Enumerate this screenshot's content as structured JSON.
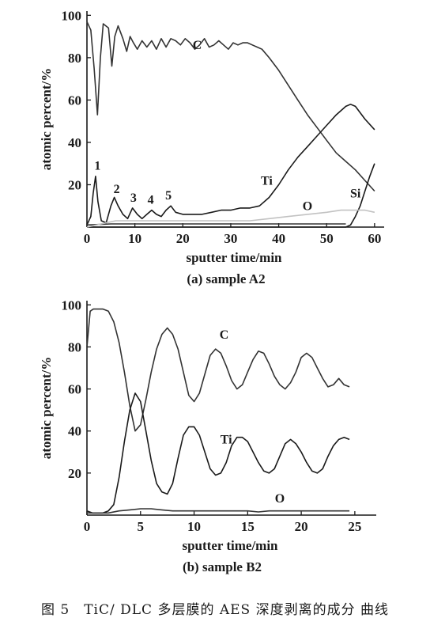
{
  "caption": "图 5　TiC/ DLC 多层膜的 AES 深度剥离的成分 曲线",
  "chart_data": [
    {
      "type": "line",
      "subcaption": "(a) sample A2",
      "xlabel": "sputter time/min",
      "ylabel": "atomic percent/%",
      "xlim": [
        0,
        62
      ],
      "ylim": [
        0,
        102
      ],
      "xticks": [
        0,
        10,
        20,
        30,
        40,
        50,
        60
      ],
      "yticks": [
        20,
        40,
        60,
        80,
        100
      ],
      "grid": false,
      "series": [
        {
          "name": "C",
          "color": "#333333",
          "x": [
            0,
            0.8,
            1.5,
            2.2,
            2.8,
            3.4,
            4.5,
            5.2,
            5.8,
            6.5,
            7.5,
            8.3,
            9.0,
            9.7,
            10.5,
            11.5,
            12.5,
            13.5,
            14.5,
            15.5,
            16.5,
            17.5,
            18.5,
            19.5,
            20.5,
            21.5,
            22.5,
            23.5,
            24.5,
            25.5,
            26.5,
            27.5,
            28.5,
            29.5,
            30.5,
            31.5,
            32.5,
            33.5,
            34.5,
            35.5,
            36.5,
            38,
            40,
            42,
            44,
            46,
            48,
            50,
            52,
            54,
            56,
            58,
            60
          ],
          "y": [
            97,
            93,
            75,
            53,
            80,
            96,
            94,
            76,
            90,
            95,
            89,
            83,
            90,
            87,
            84,
            88,
            85,
            88,
            84,
            89,
            85,
            89,
            88,
            86,
            89,
            87,
            84,
            86,
            89,
            85,
            86,
            88,
            86,
            84,
            87,
            86,
            87,
            87,
            86,
            85,
            84,
            80,
            74,
            67,
            60,
            53,
            47,
            41,
            35,
            31,
            27,
            22,
            17
          ]
        },
        {
          "name": "Ti",
          "color": "#1a1a1a",
          "x": [
            0,
            0.8,
            1.3,
            1.8,
            2.3,
            3.0,
            4.0,
            5.0,
            5.7,
            6.5,
            7.5,
            8.5,
            9.5,
            10.5,
            11.5,
            12.5,
            13.5,
            14.5,
            15.5,
            16.5,
            17.5,
            18.5,
            20,
            22,
            24,
            26,
            28,
            30,
            32,
            34,
            36,
            38,
            40,
            42,
            44,
            46,
            48,
            50,
            52,
            54,
            55,
            56,
            58,
            60
          ],
          "y": [
            1,
            5,
            16,
            24,
            12,
            3,
            2,
            10,
            14,
            10,
            6,
            4,
            9,
            6,
            4,
            6,
            8,
            6,
            5,
            8,
            10,
            7,
            6,
            6,
            6,
            7,
            8,
            8,
            9,
            9,
            10,
            14,
            20,
            27,
            33,
            38,
            43,
            48,
            53,
            57,
            58,
            57,
            51,
            46
          ]
        },
        {
          "name": "O",
          "color": "#333333",
          "x": [
            0,
            5,
            10,
            15,
            20,
            25,
            30,
            35,
            40,
            44,
            48,
            52,
            54
          ],
          "y": [
            1,
            1.5,
            1.5,
            1.5,
            1.5,
            1.5,
            1.5,
            1.5,
            1.5,
            1.5,
            1.5,
            1.5,
            1.5
          ]
        },
        {
          "name": "Si",
          "color": "#1a1a1a",
          "x": [
            0,
            10,
            20,
            30,
            40,
            50,
            54,
            55,
            56,
            57,
            58,
            59,
            60
          ],
          "y": [
            0,
            0,
            0,
            0,
            0,
            0,
            0,
            1,
            5,
            10,
            17,
            24,
            30
          ]
        },
        {
          "name": "",
          "color": "#c2c2c2",
          "x": [
            0,
            2,
            4,
            6,
            8,
            10,
            14,
            18,
            22,
            26,
            30,
            34,
            38,
            42,
            46,
            50,
            53,
            56,
            58,
            60
          ],
          "y": [
            0,
            1,
            2,
            3,
            3,
            3,
            3,
            3,
            3,
            3,
            3,
            3,
            4,
            5,
            6,
            7,
            8,
            8,
            8,
            7
          ]
        }
      ],
      "annotations": [
        {
          "text": "C",
          "x": 23,
          "y": 84
        },
        {
          "text": "Ti",
          "x": 37.5,
          "y": 20
        },
        {
          "text": "O",
          "x": 46,
          "y": 8
        },
        {
          "text": "Si",
          "x": 56,
          "y": 14
        },
        {
          "text": "1",
          "x": 2.2,
          "y": 27
        },
        {
          "text": "2",
          "x": 6.2,
          "y": 16
        },
        {
          "text": "3",
          "x": 9.7,
          "y": 12
        },
        {
          "text": "4",
          "x": 13.3,
          "y": 11
        },
        {
          "text": "5",
          "x": 17,
          "y": 13
        }
      ]
    },
    {
      "type": "line",
      "subcaption": "(b) sample B2",
      "xlabel": "sputter time/min",
      "ylabel": "atomic percent/%",
      "xlim": [
        0,
        27
      ],
      "ylim": [
        0,
        102
      ],
      "xticks": [
        0,
        5,
        10,
        15,
        20,
        25
      ],
      "yticks": [
        20,
        40,
        60,
        80,
        100
      ],
      "grid": false,
      "series": [
        {
          "name": "C",
          "color": "#333333",
          "x": [
            0,
            0.3,
            0.6,
            1.0,
            1.5,
            2.0,
            2.5,
            3.0,
            3.5,
            4.0,
            4.5,
            5.0,
            5.5,
            6.0,
            6.5,
            7.0,
            7.5,
            8.0,
            8.5,
            9.0,
            9.5,
            10.0,
            10.5,
            11.0,
            11.5,
            12.0,
            12.5,
            13.0,
            13.5,
            14.0,
            14.5,
            15.0,
            15.5,
            16.0,
            16.5,
            17.0,
            17.5,
            18.0,
            18.5,
            19.0,
            19.5,
            20.0,
            20.5,
            21.0,
            21.5,
            22.0,
            22.5,
            23.0,
            23.5,
            24.0,
            24.5
          ],
          "y": [
            80,
            97,
            98,
            98,
            98,
            97,
            92,
            82,
            68,
            52,
            40,
            43,
            55,
            68,
            79,
            86,
            89,
            86,
            79,
            68,
            57,
            54,
            58,
            67,
            76,
            79,
            77,
            71,
            64,
            60,
            62,
            68,
            74,
            78,
            77,
            72,
            66,
            62,
            60,
            63,
            68,
            75,
            77,
            75,
            70,
            65,
            61,
            62,
            65,
            62,
            61
          ]
        },
        {
          "name": "Ti",
          "color": "#1a1a1a",
          "x": [
            0,
            0.5,
            1.0,
            1.5,
            2.0,
            2.5,
            3.0,
            3.5,
            4.0,
            4.5,
            5.0,
            5.5,
            6.0,
            6.5,
            7.0,
            7.5,
            8.0,
            8.5,
            9.0,
            9.5,
            10.0,
            10.5,
            11.0,
            11.5,
            12.0,
            12.5,
            13.0,
            13.5,
            14.0,
            14.5,
            15.0,
            15.5,
            16.0,
            16.5,
            17.0,
            17.5,
            18.0,
            18.5,
            19.0,
            19.5,
            20.0,
            20.5,
            21.0,
            21.5,
            22.0,
            22.5,
            23.0,
            23.5,
            24.0,
            24.5
          ],
          "y": [
            2,
            1,
            1,
            1,
            2,
            5,
            18,
            35,
            50,
            58,
            54,
            40,
            26,
            15,
            11,
            10,
            15,
            27,
            38,
            42,
            42,
            38,
            30,
            22,
            19,
            20,
            25,
            33,
            37,
            37,
            35,
            30,
            25,
            21,
            20,
            22,
            28,
            34,
            36,
            34,
            30,
            25,
            21,
            20,
            22,
            28,
            33,
            36,
            37,
            36
          ]
        },
        {
          "name": "O",
          "color": "#333333",
          "x": [
            0,
            1,
            2,
            3,
            4,
            5,
            6,
            7,
            8,
            9,
            10,
            11,
            12,
            13,
            14,
            15,
            16,
            17,
            18,
            19,
            20,
            21,
            22,
            23,
            24,
            24.5
          ],
          "y": [
            1,
            1,
            1,
            2,
            2.5,
            3,
            3,
            2.5,
            2,
            2,
            2,
            2,
            2,
            2,
            2,
            2,
            1.5,
            2,
            2,
            2,
            2,
            2,
            2,
            2,
            2,
            2
          ]
        }
      ],
      "annotations": [
        {
          "text": "C",
          "x": 12.8,
          "y": 84
        },
        {
          "text": "Ti",
          "x": 13,
          "y": 34
        },
        {
          "text": "O",
          "x": 18,
          "y": 6
        }
      ]
    }
  ]
}
